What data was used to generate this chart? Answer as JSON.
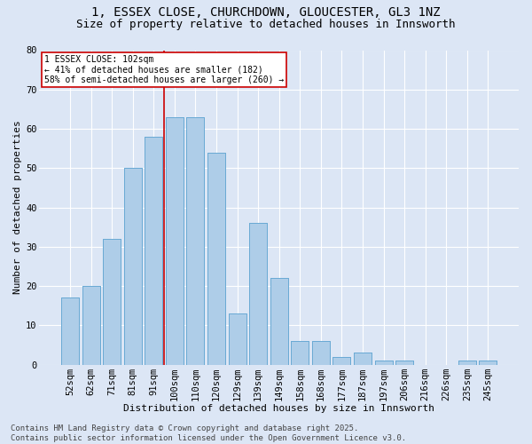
{
  "title1": "1, ESSEX CLOSE, CHURCHDOWN, GLOUCESTER, GL3 1NZ",
  "title2": "Size of property relative to detached houses in Innsworth",
  "xlabel": "Distribution of detached houses by size in Innsworth",
  "ylabel": "Number of detached properties",
  "categories": [
    "52sqm",
    "62sqm",
    "71sqm",
    "81sqm",
    "91sqm",
    "100sqm",
    "110sqm",
    "120sqm",
    "129sqm",
    "139sqm",
    "149sqm",
    "158sqm",
    "168sqm",
    "177sqm",
    "187sqm",
    "197sqm",
    "206sqm",
    "216sqm",
    "226sqm",
    "235sqm",
    "245sqm"
  ],
  "values": [
    17,
    20,
    32,
    50,
    58,
    63,
    63,
    54,
    13,
    36,
    22,
    6,
    6,
    2,
    3,
    1,
    1,
    0,
    0,
    1,
    1
  ],
  "bar_color": "#aecde8",
  "bar_edge_color": "#6aaad4",
  "background_color": "#dce6f5",
  "grid_color": "#ffffff",
  "vline_x_index": 4.5,
  "vline_color": "#cc0000",
  "annotation_text": "1 ESSEX CLOSE: 102sqm\n← 41% of detached houses are smaller (182)\n58% of semi-detached houses are larger (260) →",
  "annotation_box_color": "#ffffff",
  "annotation_box_edge": "#cc0000",
  "footer_text": "Contains HM Land Registry data © Crown copyright and database right 2025.\nContains public sector information licensed under the Open Government Licence v3.0.",
  "ylim": [
    0,
    80
  ],
  "yticks": [
    0,
    10,
    20,
    30,
    40,
    50,
    60,
    70,
    80
  ],
  "title_fontsize": 10,
  "subtitle_fontsize": 9,
  "axis_label_fontsize": 8,
  "tick_fontsize": 7.5,
  "annotation_fontsize": 7,
  "footer_fontsize": 6.5
}
